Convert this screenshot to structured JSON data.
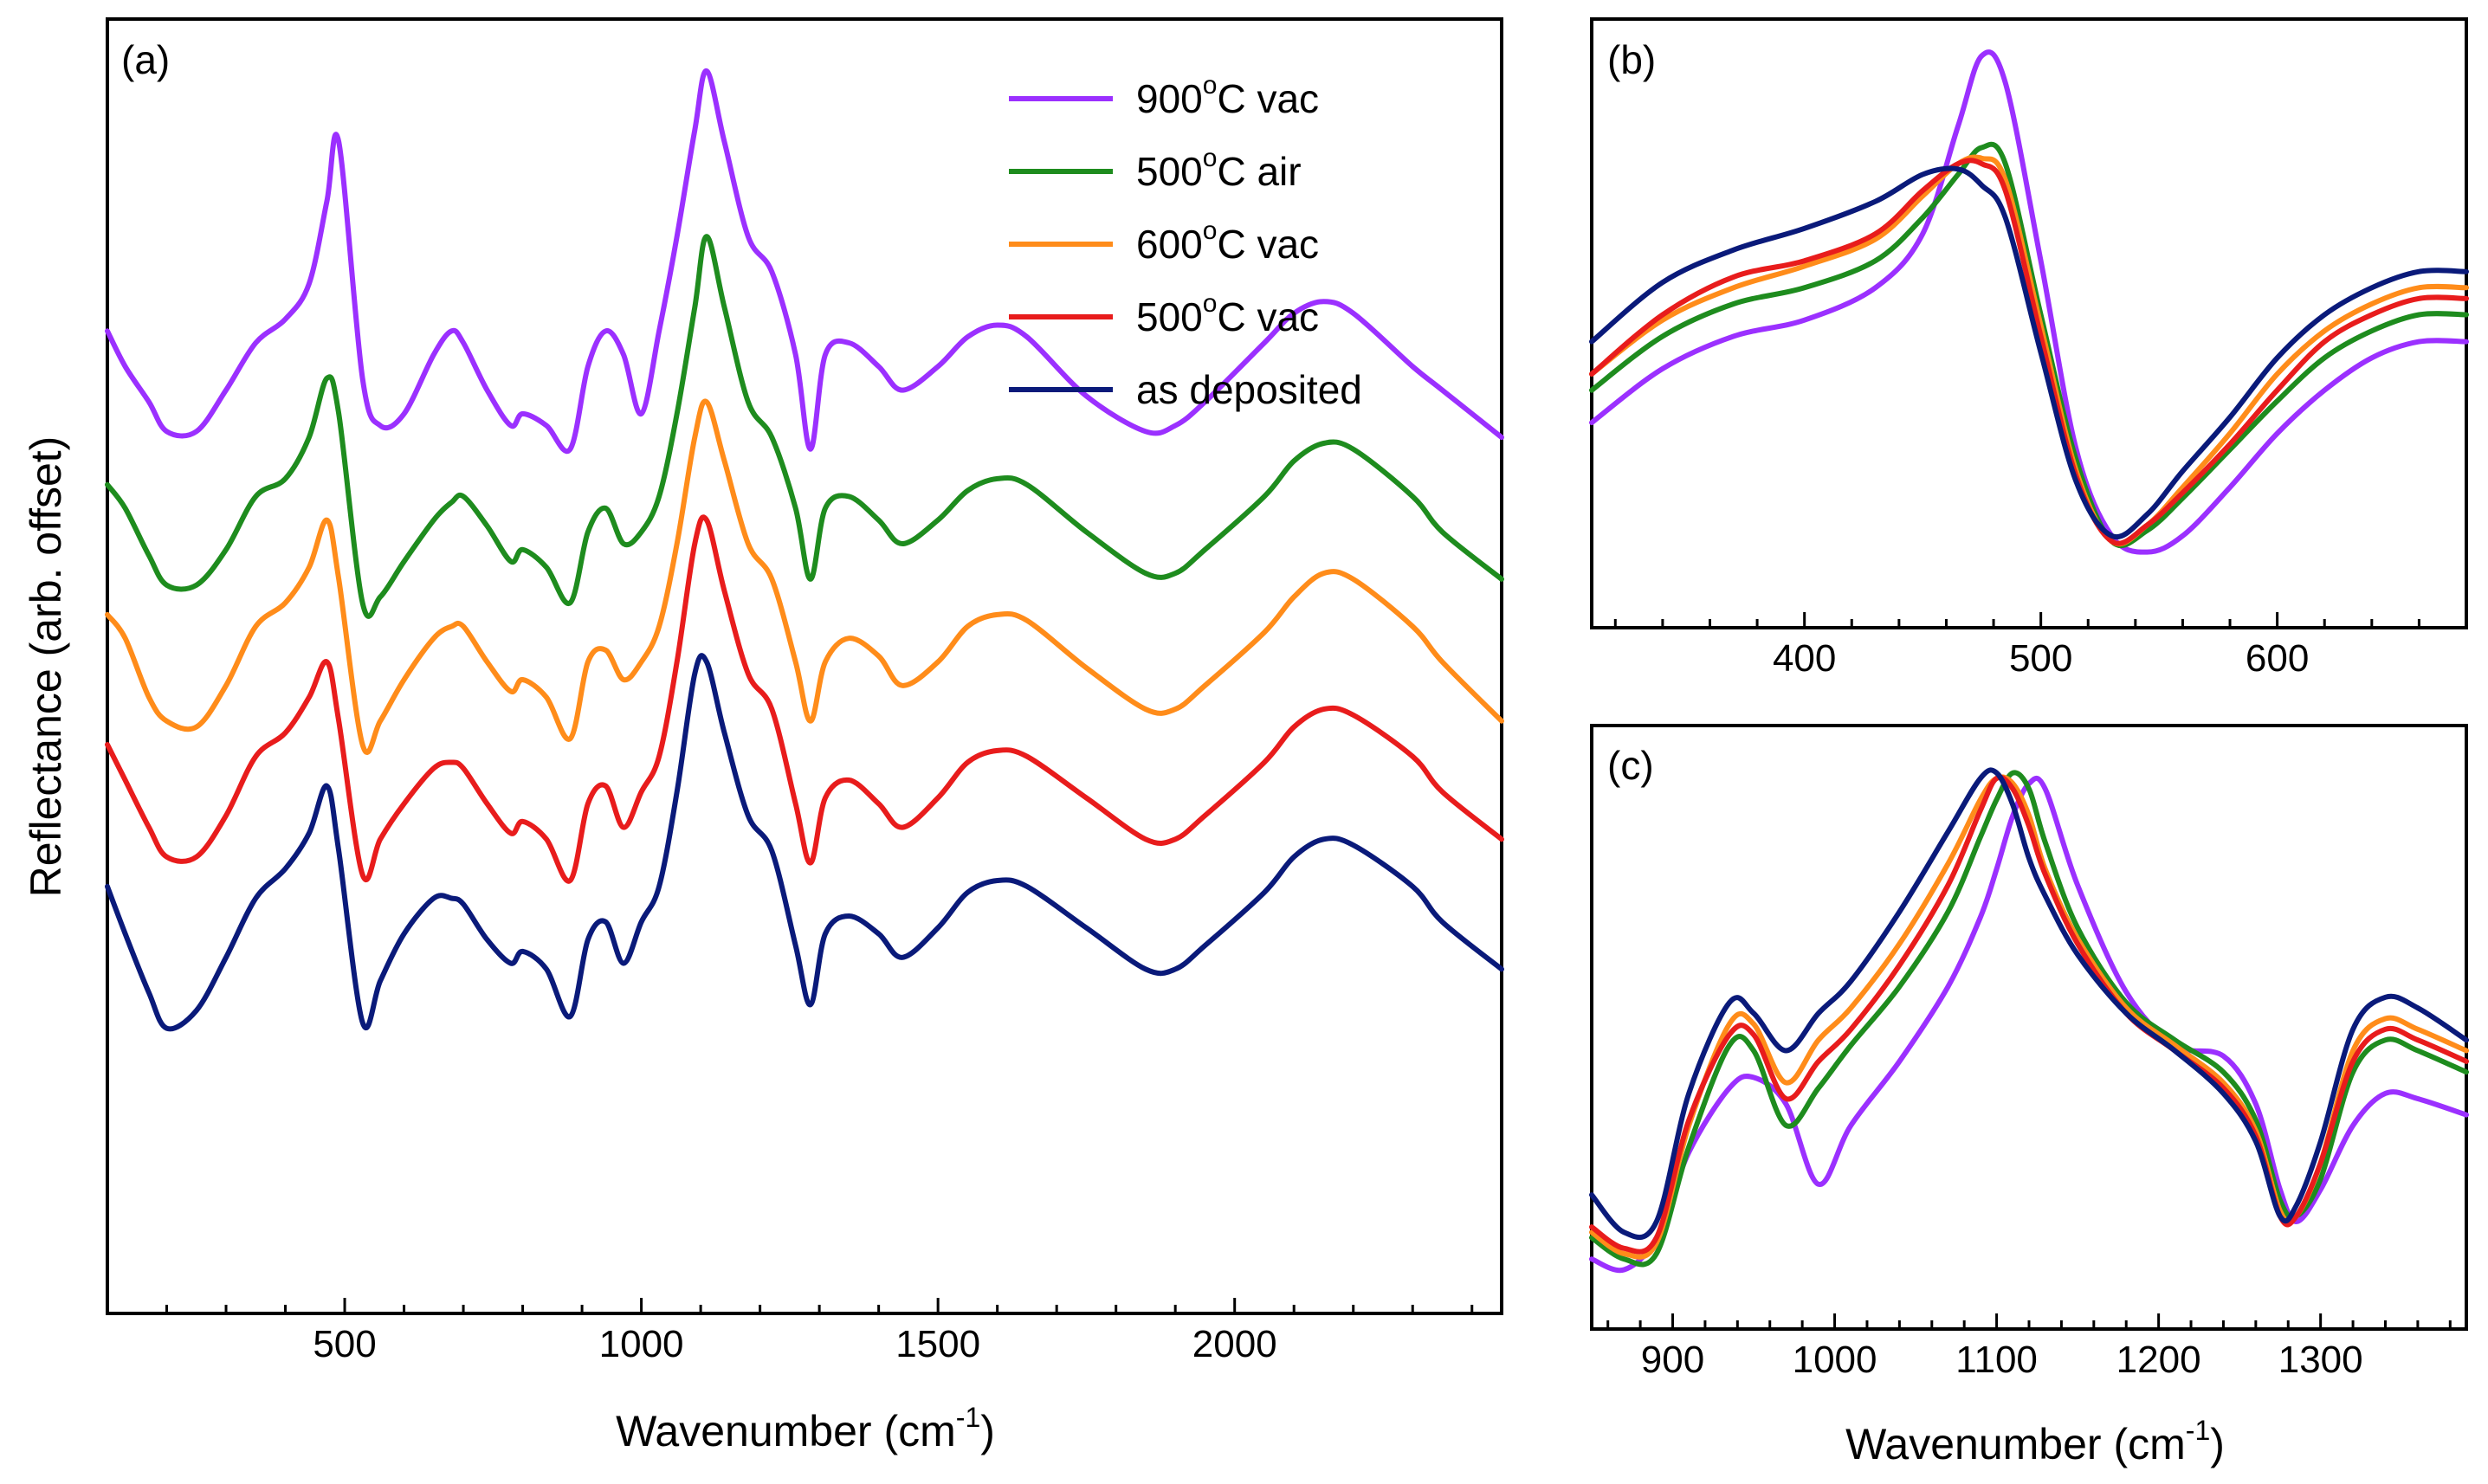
{
  "chart_data": [
    {
      "type": "line",
      "panel_label": "(a)",
      "xlabel": "Wavenumber (cm",
      "xlabel_sup": "-1",
      "xlabel_end": ")",
      "ylabel": "Reflectance (arb. offset)",
      "xlim": [
        100,
        2450
      ],
      "ylim": [
        0,
        10
      ],
      "grid": false,
      "legend_position": "top-right",
      "ticks": [
        500,
        1000,
        1500,
        2000
      ],
      "tick_labels": [
        "500",
        "1000",
        "1500",
        "2000"
      ],
      "x": [
        100,
        130,
        170,
        200,
        250,
        300,
        350,
        400,
        440,
        470,
        490,
        530,
        560,
        600,
        650,
        680,
        700,
        740,
        780,
        800,
        840,
        880,
        910,
        940,
        970,
        1000,
        1030,
        1060,
        1090,
        1110,
        1140,
        1180,
        1220,
        1260,
        1285,
        1310,
        1350,
        1400,
        1440,
        1500,
        1550,
        1600,
        1650,
        1750,
        1850,
        1900,
        1950,
        2050,
        2100,
        2150,
        2200,
        2300,
        2350,
        2450
      ],
      "series": [
        {
          "name": "900°C vac",
          "color": "#9B30FF",
          "values": [
            7.8,
            7.5,
            7.2,
            6.95,
            6.95,
            7.3,
            7.7,
            7.9,
            8.2,
            8.9,
            9.4,
            7.4,
            7.0,
            7.1,
            7.6,
            7.8,
            7.7,
            7.3,
            7.0,
            7.1,
            7.0,
            6.8,
            7.5,
            7.8,
            7.6,
            7.1,
            7.8,
            8.6,
            9.5,
            10.0,
            9.4,
            8.6,
            8.3,
            7.6,
            6.8,
            7.6,
            7.7,
            7.5,
            7.3,
            7.5,
            7.75,
            7.85,
            7.75,
            7.25,
            6.95,
            7.0,
            7.2,
            7.7,
            7.95,
            8.05,
            7.95,
            7.5,
            7.3,
            6.9
          ]
        },
        {
          "name": "500°C air",
          "color": "#1E8C1E",
          "values": [
            6.5,
            6.3,
            5.9,
            5.65,
            5.65,
            5.95,
            6.4,
            6.55,
            6.9,
            7.4,
            7.1,
            5.5,
            5.55,
            5.85,
            6.2,
            6.35,
            6.4,
            6.15,
            5.85,
            5.95,
            5.8,
            5.5,
            6.1,
            6.3,
            6.0,
            6.1,
            6.4,
            7.1,
            8.0,
            8.6,
            8.0,
            7.2,
            6.9,
            6.3,
            5.7,
            6.3,
            6.4,
            6.2,
            6.0,
            6.2,
            6.45,
            6.55,
            6.5,
            6.1,
            5.75,
            5.75,
            5.95,
            6.4,
            6.7,
            6.85,
            6.8,
            6.4,
            6.1,
            5.7
          ]
        },
        {
          "name": "600°C vac",
          "color": "#FF8C1A",
          "values": [
            5.4,
            5.2,
            4.7,
            4.5,
            4.45,
            4.8,
            5.3,
            5.5,
            5.8,
            6.2,
            5.7,
            4.3,
            4.5,
            4.85,
            5.2,
            5.3,
            5.3,
            5.0,
            4.75,
            4.85,
            4.7,
            4.35,
            5.0,
            5.1,
            4.85,
            5.0,
            5.3,
            6.0,
            6.9,
            7.2,
            6.7,
            6.0,
            5.7,
            5.0,
            4.5,
            5.0,
            5.2,
            5.05,
            4.8,
            5.0,
            5.3,
            5.4,
            5.35,
            4.95,
            4.6,
            4.6,
            4.8,
            5.25,
            5.55,
            5.75,
            5.7,
            5.3,
            5.0,
            4.5
          ]
        },
        {
          "name": "500°C vac",
          "color": "#E81C1C",
          "values": [
            4.3,
            4.0,
            3.6,
            3.35,
            3.35,
            3.7,
            4.2,
            4.4,
            4.7,
            5.0,
            4.5,
            3.2,
            3.5,
            3.8,
            4.1,
            4.15,
            4.1,
            3.8,
            3.55,
            3.65,
            3.5,
            3.15,
            3.8,
            3.95,
            3.6,
            3.9,
            4.2,
            5.0,
            6.0,
            6.2,
            5.6,
            4.9,
            4.6,
            3.8,
            3.3,
            3.85,
            4.0,
            3.8,
            3.6,
            3.85,
            4.15,
            4.25,
            4.2,
            3.85,
            3.5,
            3.5,
            3.7,
            4.15,
            4.45,
            4.6,
            4.55,
            4.2,
            3.9,
            3.5
          ]
        },
        {
          "name": "as deposited",
          "color": "#0A1A7A",
          "values": [
            3.1,
            2.7,
            2.2,
            1.9,
            2.05,
            2.5,
            3.0,
            3.25,
            3.55,
            3.95,
            3.4,
            1.95,
            2.3,
            2.7,
            3.0,
            3.0,
            2.95,
            2.65,
            2.45,
            2.55,
            2.4,
            2.0,
            2.65,
            2.8,
            2.45,
            2.8,
            3.1,
            3.9,
            4.9,
            5.0,
            4.4,
            3.7,
            3.4,
            2.6,
            2.1,
            2.7,
            2.85,
            2.7,
            2.5,
            2.75,
            3.05,
            3.15,
            3.1,
            2.75,
            2.4,
            2.4,
            2.6,
            3.05,
            3.35,
            3.5,
            3.45,
            3.1,
            2.8,
            2.4
          ]
        }
      ],
      "legend": [
        {
          "label_pre": "900",
          "label_sup": "o",
          "label_post": "C vac",
          "color": "#9B30FF"
        },
        {
          "label_pre": "500",
          "label_sup": "o",
          "label_post": "C air",
          "color": "#1E8C1E"
        },
        {
          "label_pre": "600",
          "label_sup": "o",
          "label_post": "C vac",
          "color": "#FF8C1A"
        },
        {
          "label_pre": "500",
          "label_sup": "o",
          "label_post": "C vac",
          "color": "#E81C1C"
        },
        {
          "label_pre": "",
          "label_sup": "",
          "label_post": "as deposited",
          "color": "#0A1A7A"
        }
      ]
    },
    {
      "type": "line",
      "panel_label": "(b)",
      "xlabel": "",
      "ylabel": "",
      "xlim": [
        310,
        680
      ],
      "ylim": [
        0,
        10
      ],
      "grid": false,
      "ticks": [
        400,
        500,
        600
      ],
      "tick_labels": [
        "400",
        "500",
        "600"
      ],
      "x": [
        310,
        340,
        370,
        400,
        430,
        450,
        465,
        475,
        485,
        500,
        515,
        530,
        545,
        560,
        580,
        600,
        620,
        640,
        660,
        680
      ],
      "series": [
        {
          "name": "900°C vac",
          "color": "#9B30FF",
          "values": [
            3.0,
            4.0,
            4.6,
            4.9,
            5.5,
            6.5,
            8.5,
            9.8,
            9.3,
            6.0,
            2.5,
            0.9,
            0.6,
            0.9,
            1.8,
            2.8,
            3.6,
            4.2,
            4.5,
            4.5
          ]
        },
        {
          "name": "500°C air",
          "color": "#1E8C1E",
          "values": [
            3.6,
            4.6,
            5.2,
            5.5,
            6.0,
            6.8,
            7.6,
            8.1,
            7.8,
            5.0,
            2.3,
            0.8,
            1.0,
            1.6,
            2.5,
            3.4,
            4.2,
            4.7,
            5.0,
            5.0
          ]
        },
        {
          "name": "600°C vac",
          "color": "#FF8C1A",
          "values": [
            3.9,
            4.9,
            5.5,
            5.9,
            6.4,
            7.2,
            7.8,
            7.9,
            7.5,
            4.8,
            2.1,
            0.8,
            1.1,
            1.8,
            2.8,
            3.9,
            4.7,
            5.2,
            5.5,
            5.5
          ]
        },
        {
          "name": "500°C vac",
          "color": "#E81C1C",
          "values": [
            3.9,
            5.0,
            5.7,
            6.0,
            6.5,
            7.3,
            7.8,
            7.8,
            7.3,
            4.6,
            2.0,
            0.8,
            1.1,
            1.7,
            2.6,
            3.6,
            4.5,
            5.0,
            5.3,
            5.3
          ]
        },
        {
          "name": "as deposited",
          "color": "#0A1A7A",
          "values": [
            4.5,
            5.6,
            6.2,
            6.6,
            7.1,
            7.6,
            7.7,
            7.4,
            6.8,
            4.3,
            1.9,
            0.9,
            1.3,
            2.1,
            3.1,
            4.2,
            5.0,
            5.5,
            5.8,
            5.8
          ]
        }
      ]
    },
    {
      "type": "line",
      "panel_label": "(c)",
      "xlabel": "Wavenumber (cm",
      "xlabel_sup": "-1",
      "xlabel_end": ")",
      "ylabel": "",
      "xlim": [
        850,
        1390
      ],
      "ylim": [
        0,
        10
      ],
      "grid": false,
      "ticks": [
        900,
        1000,
        1100,
        1200,
        1300
      ],
      "tick_labels": [
        "900",
        "1000",
        "1100",
        "1200",
        "1300"
      ],
      "x": [
        850,
        870,
        890,
        910,
        935,
        950,
        970,
        990,
        1010,
        1040,
        1070,
        1090,
        1100,
        1110,
        1120,
        1130,
        1150,
        1180,
        1210,
        1240,
        1260,
        1275,
        1285,
        1300,
        1320,
        1340,
        1360,
        1390
      ],
      "series": [
        {
          "name": "900°C vac",
          "color": "#9B30FF",
          "values": [
            0.5,
            0.3,
            0.9,
            2.5,
            3.7,
            3.9,
            3.4,
            1.9,
            3.0,
            4.2,
            5.6,
            6.9,
            7.8,
            8.8,
            9.4,
            9.3,
            7.5,
            5.5,
            4.5,
            4.3,
            3.4,
            1.8,
            1.2,
            1.8,
            3.0,
            3.6,
            3.5,
            3.2
          ]
        },
        {
          "name": "500°C air",
          "color": "#1E8C1E",
          "values": [
            0.9,
            0.5,
            0.6,
            2.6,
            4.5,
            4.4,
            3.0,
            3.7,
            4.5,
            5.6,
            7.0,
            8.4,
            9.1,
            9.6,
            9.3,
            8.3,
            6.7,
            5.3,
            4.6,
            4.0,
            3.1,
            1.6,
            1.3,
            2.0,
            4.0,
            4.6,
            4.4,
            4.0
          ]
        },
        {
          "name": "600°C vac",
          "color": "#FF8C1A",
          "values": [
            1.0,
            0.6,
            0.8,
            3.0,
            4.9,
            4.9,
            3.8,
            4.6,
            5.2,
            6.4,
            7.9,
            9.1,
            9.5,
            9.4,
            8.8,
            7.8,
            6.5,
            5.2,
            4.5,
            3.8,
            2.9,
            1.4,
            1.3,
            2.3,
            4.4,
            5.0,
            4.8,
            4.4
          ]
        },
        {
          "name": "500°C vac",
          "color": "#E81C1C",
          "values": [
            1.1,
            0.7,
            0.9,
            3.1,
            4.7,
            4.7,
            3.5,
            4.2,
            4.8,
            6.0,
            7.5,
            8.9,
            9.5,
            9.3,
            8.6,
            7.7,
            6.4,
            5.1,
            4.4,
            3.7,
            2.8,
            1.3,
            1.3,
            2.3,
            4.2,
            4.8,
            4.6,
            4.2
          ]
        },
        {
          "name": "as deposited",
          "color": "#0A1A7A",
          "values": [
            1.7,
            1.0,
            1.2,
            3.6,
            5.3,
            5.1,
            4.4,
            5.1,
            5.7,
            7.0,
            8.5,
            9.5,
            9.6,
            9.0,
            8.0,
            7.3,
            6.2,
            5.1,
            4.4,
            3.6,
            2.7,
            1.3,
            1.5,
            2.7,
            4.8,
            5.4,
            5.2,
            4.6
          ]
        }
      ]
    }
  ]
}
